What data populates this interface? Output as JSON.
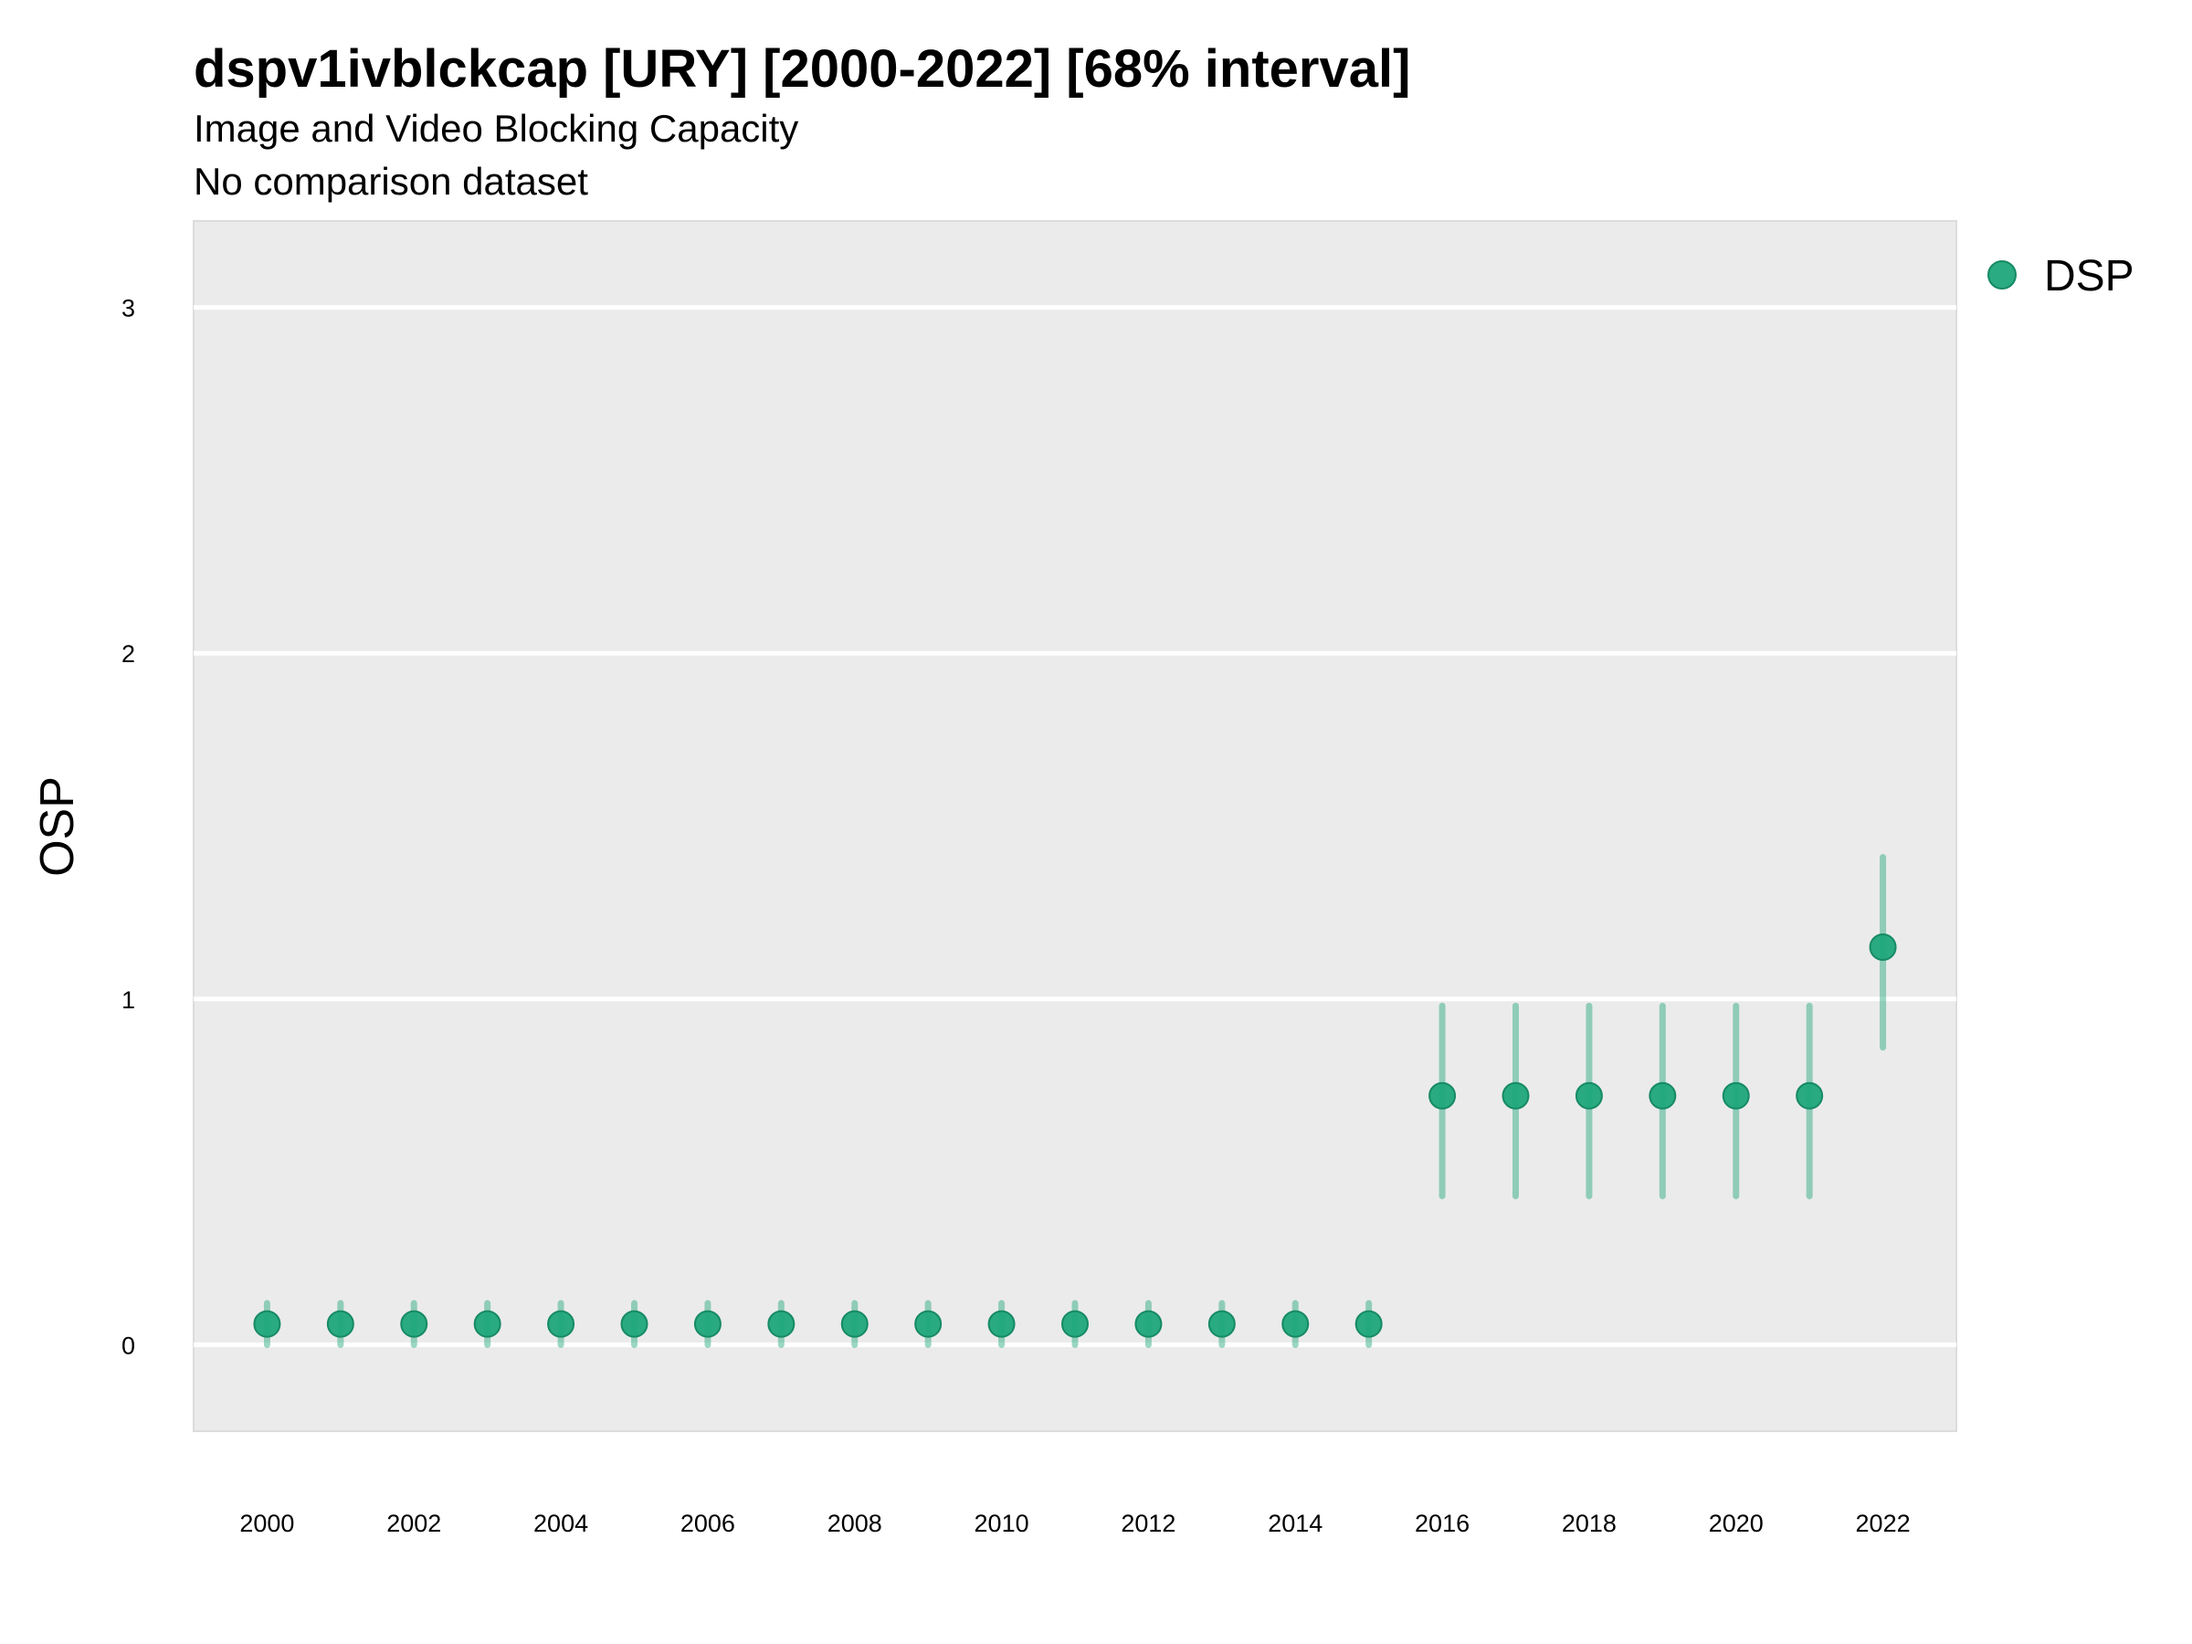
{
  "chart_data": {
    "type": "scatter",
    "title": "dspv1ivblckcap [URY] [2000-2022] [68% interval]",
    "subtitle": "Image and Video Blocking Capacity",
    "caption": "No comparison dataset",
    "xlabel": "",
    "ylabel": "OSP",
    "xlim": [
      1999,
      2023
    ],
    "ylim": [
      -0.25,
      3.25
    ],
    "x_ticks": [
      "2000",
      "2002",
      "2004",
      "2006",
      "2008",
      "2010",
      "2012",
      "2014",
      "2016",
      "2018",
      "2020",
      "2022"
    ],
    "y_ticks": [
      "0",
      "1",
      "2",
      "3"
    ],
    "grid": true,
    "legend": "right",
    "series": [
      {
        "name": "DSP",
        "color": "#1fa67a",
        "x": [
          2000,
          2001,
          2002,
          2003,
          2004,
          2005,
          2006,
          2007,
          2008,
          2009,
          2010,
          2011,
          2012,
          2013,
          2014,
          2015,
          2016,
          2017,
          2018,
          2019,
          2020,
          2021,
          2022
        ],
        "y": [
          0.06,
          0.06,
          0.06,
          0.06,
          0.06,
          0.06,
          0.06,
          0.06,
          0.06,
          0.06,
          0.06,
          0.06,
          0.06,
          0.06,
          0.06,
          0.06,
          0.72,
          0.72,
          0.72,
          0.72,
          0.72,
          0.72,
          1.15
        ],
        "lower": [
          0.0,
          0.0,
          0.0,
          0.0,
          0.0,
          0.0,
          0.0,
          0.0,
          0.0,
          0.0,
          0.0,
          0.0,
          0.0,
          0.0,
          0.0,
          0.0,
          0.43,
          0.43,
          0.43,
          0.43,
          0.43,
          0.43,
          0.86
        ],
        "upper": [
          0.12,
          0.12,
          0.12,
          0.12,
          0.12,
          0.12,
          0.12,
          0.12,
          0.12,
          0.12,
          0.12,
          0.12,
          0.12,
          0.12,
          0.12,
          0.12,
          0.98,
          0.98,
          0.98,
          0.98,
          0.98,
          0.98,
          1.41
        ]
      }
    ]
  }
}
